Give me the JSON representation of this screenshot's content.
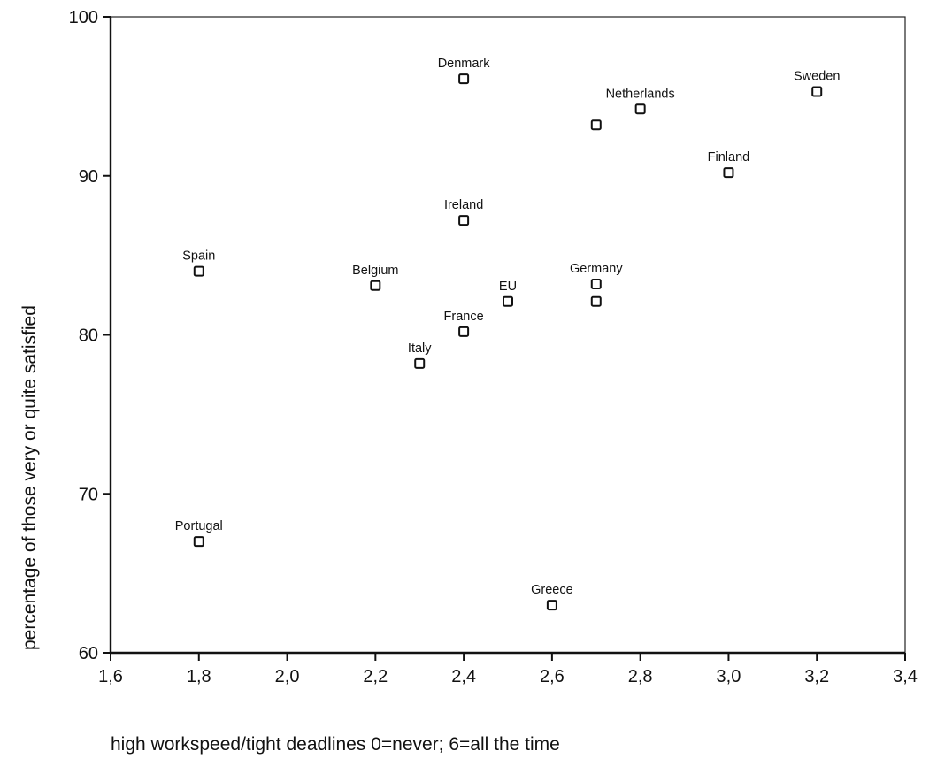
{
  "chart_data": {
    "type": "scatter",
    "xlabel": "high workspeed/tight deadlines 0=never; 6=all the time",
    "ylabel": "percentage of those very or quite satisfied",
    "xlim": [
      1.6,
      3.4
    ],
    "ylim": [
      60,
      100
    ],
    "x_ticks": [
      1.6,
      1.8,
      2.0,
      2.2,
      2.4,
      2.6,
      2.8,
      3.0,
      3.2,
      3.4
    ],
    "x_tick_labels": [
      "1,6",
      "1,8",
      "2,0",
      "2,2",
      "2,4",
      "2,6",
      "2,8",
      "3,0",
      "3,2",
      "3,4"
    ],
    "y_ticks": [
      60,
      70,
      80,
      90,
      100
    ],
    "y_tick_labels": [
      "60",
      "70",
      "80",
      "90",
      "100"
    ],
    "grid": false,
    "marker": "open-square",
    "points": [
      {
        "label": "Denmark",
        "x": 2.4,
        "y": 96.1
      },
      {
        "label": "Netherlands",
        "x": 2.8,
        "y": 94.2
      },
      {
        "label": "",
        "x": 2.7,
        "y": 93.2
      },
      {
        "label": "Sweden",
        "x": 3.2,
        "y": 95.3
      },
      {
        "label": "Finland",
        "x": 3.0,
        "y": 90.2
      },
      {
        "label": "Ireland",
        "x": 2.4,
        "y": 87.2
      },
      {
        "label": "Spain",
        "x": 1.8,
        "y": 84.0
      },
      {
        "label": "Belgium",
        "x": 2.2,
        "y": 83.1
      },
      {
        "label": "EU",
        "x": 2.5,
        "y": 82.1
      },
      {
        "label": "Germany",
        "x": 2.7,
        "y": 83.2
      },
      {
        "label": "",
        "x": 2.7,
        "y": 82.1
      },
      {
        "label": "France",
        "x": 2.4,
        "y": 80.2
      },
      {
        "label": "Italy",
        "x": 2.3,
        "y": 78.2
      },
      {
        "label": "Portugal",
        "x": 1.8,
        "y": 67.0
      },
      {
        "label": "Greece",
        "x": 2.6,
        "y": 63.0
      }
    ]
  }
}
